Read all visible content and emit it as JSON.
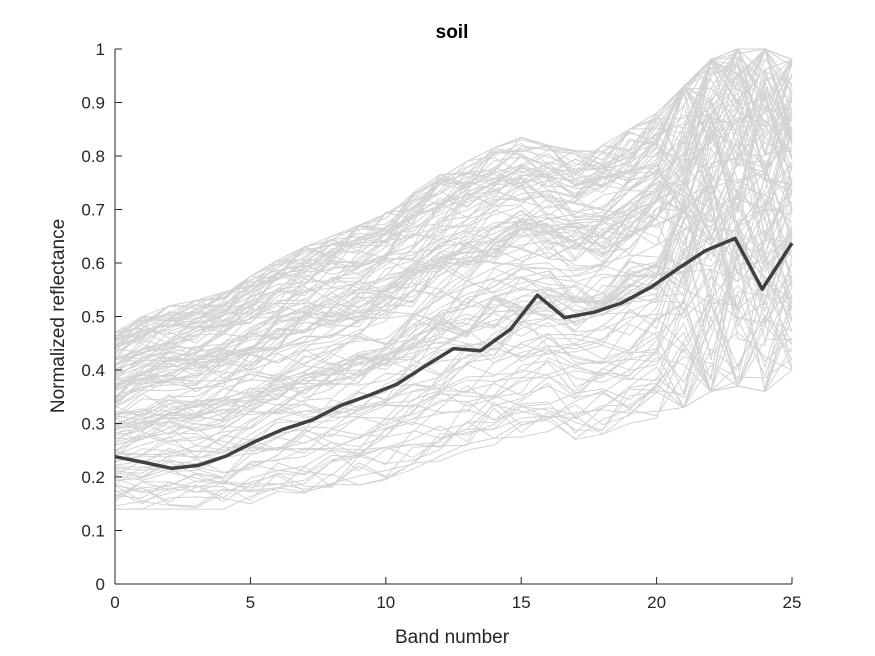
{
  "chart_data": {
    "type": "line",
    "title": "soil",
    "xlabel": "Band number",
    "ylabel": "Normalized reflectance",
    "xlim": [
      0,
      25
    ],
    "ylim": [
      0,
      1
    ],
    "xticks": [
      "0",
      "5",
      "10",
      "15",
      "20",
      "25"
    ],
    "yticks": [
      "0",
      "0.1",
      "0.2",
      "0.3",
      "0.4",
      "0.5",
      "0.6",
      "0.7",
      "0.8",
      "0.9",
      "1"
    ],
    "grid": false,
    "background_envelope": {
      "x": [
        0,
        1,
        2,
        3,
        4,
        5,
        6,
        7,
        8,
        9,
        10,
        11,
        12,
        13,
        14,
        15,
        16,
        17,
        18,
        19,
        20,
        21,
        22,
        23,
        24,
        25
      ],
      "upper": [
        0.47,
        0.5,
        0.52,
        0.53,
        0.545,
        0.575,
        0.605,
        0.63,
        0.65,
        0.67,
        0.695,
        0.73,
        0.765,
        0.79,
        0.815,
        0.835,
        0.82,
        0.81,
        0.82,
        0.85,
        0.88,
        0.93,
        0.98,
        1.0,
        1.0,
        0.98
      ],
      "lower": [
        0.14,
        0.14,
        0.14,
        0.135,
        0.14,
        0.15,
        0.16,
        0.17,
        0.175,
        0.185,
        0.195,
        0.21,
        0.23,
        0.25,
        0.26,
        0.275,
        0.285,
        0.27,
        0.28,
        0.3,
        0.31,
        0.33,
        0.36,
        0.37,
        0.36,
        0.4
      ]
    },
    "series": [
      {
        "x": [
          0,
          1,
          2.1,
          3.1,
          4.1,
          5.2,
          6.2,
          7.3,
          8.3,
          9.4,
          10.4,
          11.5,
          12.5,
          13.5,
          14.6,
          15.6,
          16.6,
          17.7,
          18.7,
          19.8,
          20.8,
          21.8,
          22.9,
          23.9,
          25
        ],
        "values": [
          0.238,
          0.228,
          0.216,
          0.222,
          0.239,
          0.267,
          0.289,
          0.307,
          0.333,
          0.353,
          0.373,
          0.409,
          0.44,
          0.436,
          0.476,
          0.54,
          0.498,
          0.508,
          0.525,
          0.555,
          0.59,
          0.623,
          0.646,
          0.551,
          0.637
        ],
        "color": "#404040"
      }
    ],
    "background_color": "#d3d3d3"
  }
}
